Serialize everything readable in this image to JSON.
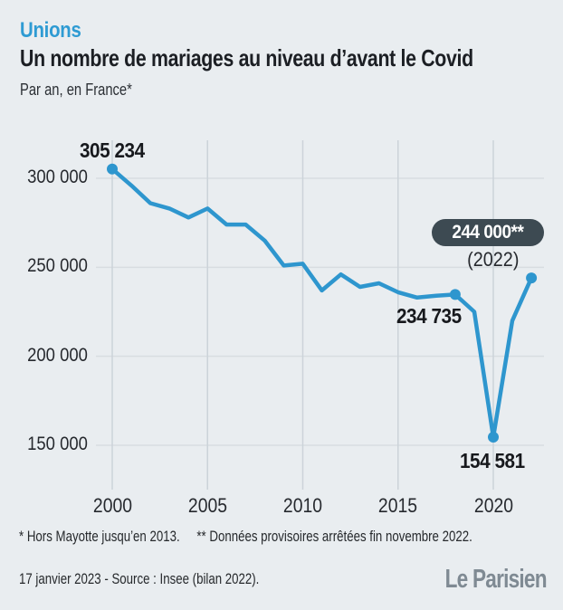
{
  "header": {
    "kicker": "Unions",
    "title": "Un nombre de mariages au niveau d’avant le Covid",
    "subtitle": "Par an, en France*"
  },
  "chart_data": {
    "type": "line",
    "title": "Un nombre de mariages au niveau d’avant le Covid",
    "subtitle": "Par an, en France*",
    "xlabel": "",
    "ylabel": "",
    "x": [
      2000,
      2001,
      2002,
      2003,
      2004,
      2005,
      2006,
      2007,
      2008,
      2009,
      2010,
      2011,
      2012,
      2013,
      2014,
      2015,
      2016,
      2017,
      2018,
      2019,
      2020,
      2021,
      2022
    ],
    "values": [
      305234,
      296000,
      286000,
      283000,
      278000,
      283000,
      274000,
      274000,
      265000,
      251000,
      252000,
      237000,
      246000,
      239000,
      241000,
      236000,
      233000,
      234000,
      234735,
      225000,
      154581,
      220000,
      244000
    ],
    "x_ticks": [
      2000,
      2005,
      2010,
      2015,
      2020
    ],
    "x_tick_labels": [
      "2000",
      "2005",
      "2010",
      "2015",
      "2020"
    ],
    "y_ticks": [
      150000,
      200000,
      250000,
      300000
    ],
    "y_tick_labels": [
      "150 000",
      "200 000",
      "250 000",
      "300 000"
    ],
    "ylim": [
      125000,
      321000
    ],
    "xlim": [
      1999.2,
      2023
    ],
    "grid": true,
    "legend": "none",
    "marker_years": [
      2000,
      2018,
      2020,
      2022
    ],
    "annotations": {
      "start": {
        "year": 2000,
        "value": 305234,
        "label": "305 234"
      },
      "pre_covid": {
        "year": 2018,
        "value": 234735,
        "label": "234 735"
      },
      "covid_low": {
        "year": 2020,
        "value": 154581,
        "label": "154 581"
      },
      "latest_badge": {
        "year": 2022,
        "value": 244000,
        "value_label": "244 000**",
        "year_label": "(2022)"
      }
    }
  },
  "colors": {
    "background": "#e9edf0",
    "accent_blue": "#2e9bd3",
    "line_blue": "#2e96ce",
    "badge_background": "#3d4a52",
    "badge_text": "#ffffff",
    "grid_horizontal": "#d8dde1",
    "grid_vertical": "#ccd3d9",
    "text_dark": "#1c1f24",
    "logo_gray": "#7f8a93"
  },
  "footnotes": {
    "note1": "* Hors Mayotte jusqu’en 2013.",
    "note2": "** Données provisoires arrêtées fin novembre 2022."
  },
  "source_line": "17 janvier 2023 - Source : Insee (bilan 2022).",
  "logo_text": "Le Parisien"
}
